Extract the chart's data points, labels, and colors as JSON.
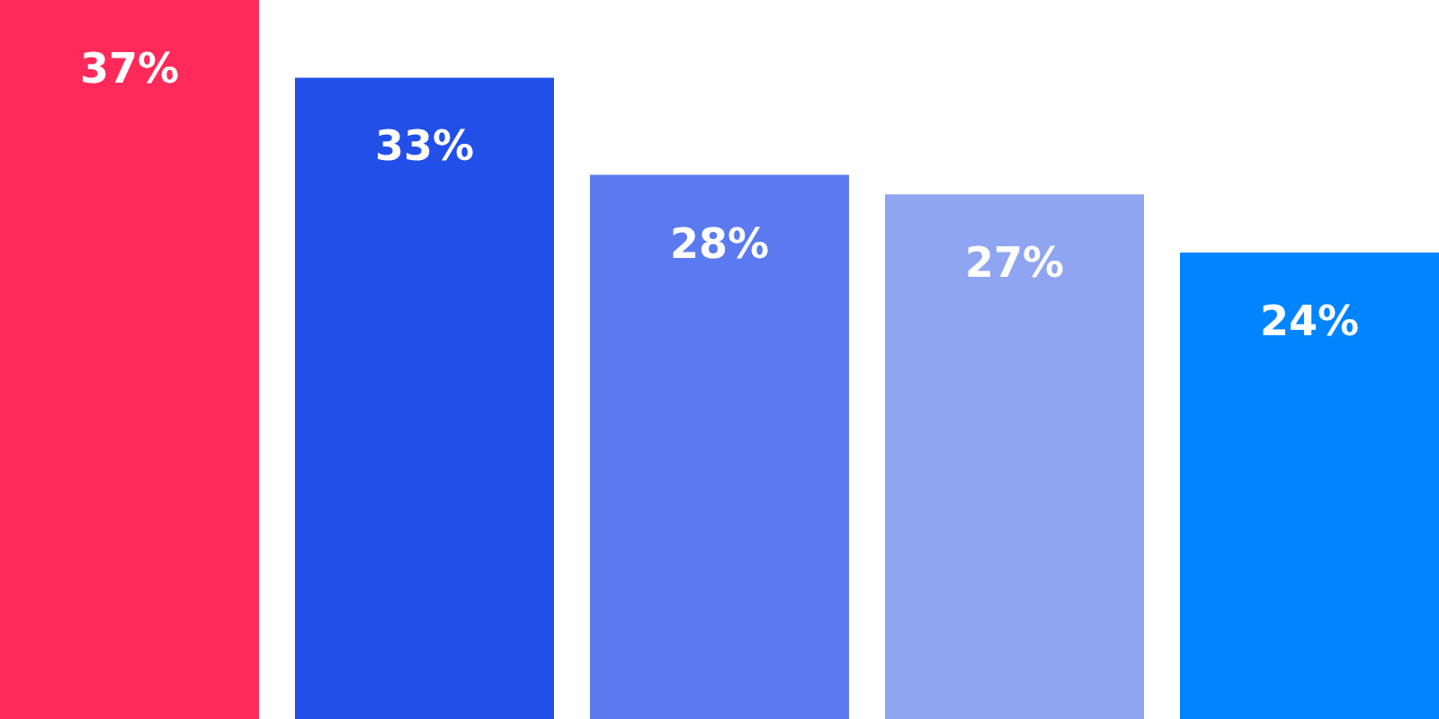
{
  "chart_data": {
    "type": "bar",
    "categories": [
      null,
      null,
      null,
      null,
      null
    ],
    "values": [
      37,
      33,
      28,
      27,
      24
    ],
    "colors": [
      "#ff2a5a",
      "#224fe8",
      "#5b7aef",
      "#8fa5f2",
      "#0084ff"
    ],
    "value_labels": [
      "37%",
      "33%",
      "28%",
      "27%",
      "24%"
    ]
  }
}
